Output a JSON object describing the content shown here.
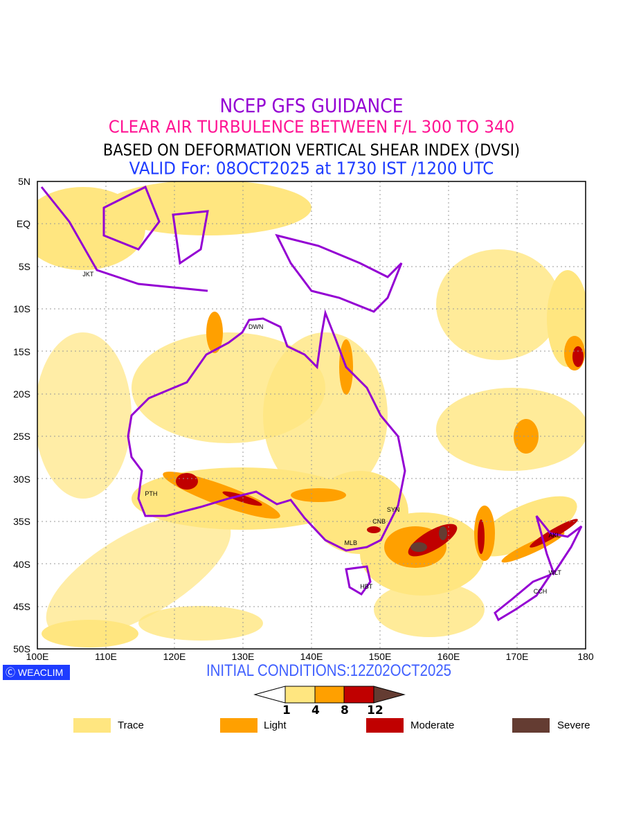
{
  "titles": {
    "line1": "NCEP GFS GUIDANCE",
    "line2": "CLEAR AIR TURBULENCE BETWEEN F/L 300 TO 340",
    "line3": "BASED ON DEFORMATION VERTICAL SHEAR INDEX (DVSI)",
    "line4": "VALID For: 08OCT2025 at 1730 IST /1200 UTC"
  },
  "axes": {
    "lat": [
      "5N",
      "EQ",
      "5S",
      "10S",
      "15S",
      "20S",
      "25S",
      "30S",
      "35S",
      "40S",
      "45S",
      "50S"
    ],
    "lon": [
      "100E",
      "110E",
      "120E",
      "130E",
      "140E",
      "150E",
      "160E",
      "170E",
      "180"
    ]
  },
  "cities": [
    {
      "name": "JKT",
      "lon": 106.8,
      "lat": -6.2
    },
    {
      "name": "DWN",
      "lon": 131,
      "lat": -12.4
    },
    {
      "name": "PTH",
      "lon": 115.9,
      "lat": -32
    },
    {
      "name": "SYN",
      "lon": 151.2,
      "lat": -33.9
    },
    {
      "name": "CNB",
      "lon": 149.1,
      "lat": -35.3
    },
    {
      "name": "MLB",
      "lon": 145,
      "lat": -37.8
    },
    {
      "name": "HBT",
      "lon": 147.3,
      "lat": -42.9
    },
    {
      "name": "AKL",
      "lon": 174.8,
      "lat": -36.9
    },
    {
      "name": "WLT",
      "lon": 174.8,
      "lat": -41.3
    },
    {
      "name": "CCH",
      "lon": 172.6,
      "lat": -43.5
    }
  ],
  "logo": "WEACLIM",
  "initial": "INITIAL CONDITIONS:12Z02OCT2025",
  "colorbar": {
    "levels": [
      "1",
      "4",
      "8",
      "12"
    ],
    "colors": [
      "#ffe680",
      "#ffa000",
      "#c00000",
      "#643c32"
    ]
  },
  "legend": [
    {
      "label": "Trace",
      "color": "#ffe680"
    },
    {
      "label": "Light",
      "color": "#ffa000"
    },
    {
      "label": "Moderate",
      "color": "#c00000"
    },
    {
      "label": "Severe",
      "color": "#643c32"
    }
  ]
}
